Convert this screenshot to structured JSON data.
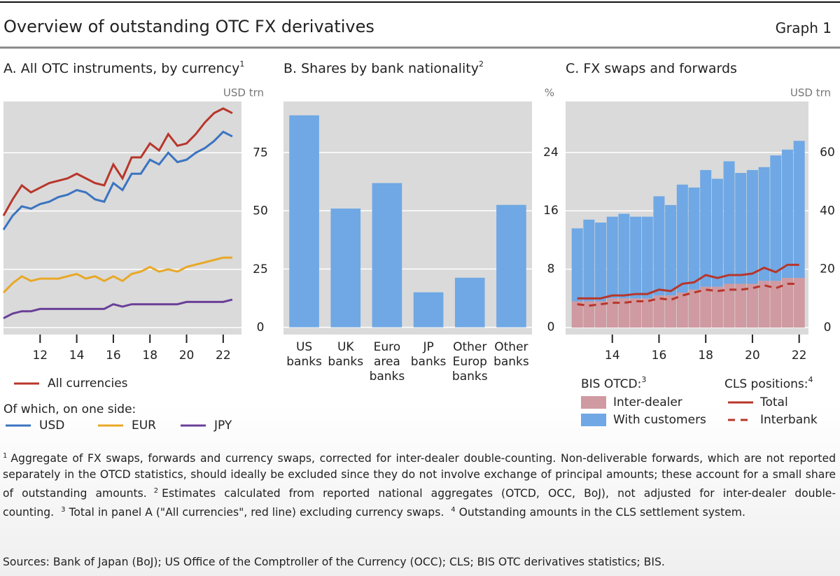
{
  "header": {
    "title": "Overview of outstanding OTC FX derivatives",
    "label": "Graph 1"
  },
  "chart_data": [
    {
      "type": "line",
      "title": "A. All OTC instruments, by currency",
      "title_note": "1",
      "y_unit": "USD trn",
      "x": [
        10,
        10.5,
        11,
        11.5,
        12,
        12.5,
        13,
        13.5,
        14,
        14.5,
        15,
        15.5,
        16,
        16.5,
        17,
        17.5,
        18,
        18.5,
        19,
        19.5,
        20,
        20.5,
        21,
        21.5,
        22,
        22.5
      ],
      "xlim": [
        10,
        23
      ],
      "xticks": [
        12,
        14,
        16,
        18,
        20,
        22
      ],
      "ylim": [
        -3,
        97
      ],
      "yticks": [
        0,
        25,
        50,
        75
      ],
      "grid": true,
      "legend_subtitle": "Of which, on one side:",
      "series": [
        {
          "name": "All currencies",
          "color": "#b8362b",
          "values": [
            48,
            55,
            61,
            58,
            60,
            62,
            63,
            64,
            66,
            64,
            62,
            61,
            70,
            64,
            73,
            73,
            79,
            76,
            83,
            78,
            79,
            83,
            88,
            92,
            94,
            92
          ]
        },
        {
          "name": "USD",
          "color": "#3a74c0",
          "values": [
            42,
            48,
            52,
            51,
            53,
            54,
            56,
            57,
            59,
            58,
            55,
            54,
            62,
            59,
            66,
            66,
            72,
            70,
            75,
            71,
            72,
            75,
            77,
            80,
            84,
            82
          ]
        },
        {
          "name": "EUR",
          "color": "#e8a826",
          "values": [
            15,
            19,
            22,
            20,
            21,
            21,
            21,
            22,
            23,
            21,
            22,
            20,
            22,
            20,
            23,
            24,
            26,
            24,
            25,
            24,
            26,
            27,
            28,
            29,
            30,
            30
          ]
        },
        {
          "name": "JPY",
          "color": "#6a3f98",
          "values": [
            4,
            6,
            7,
            7,
            8,
            8,
            8,
            8,
            8,
            8,
            8,
            8,
            10,
            9,
            10,
            10,
            10,
            10,
            10,
            10,
            11,
            11,
            11,
            11,
            11,
            12
          ]
        }
      ]
    },
    {
      "type": "bar",
      "title": "B. Shares by bank nationality",
      "title_note": "2",
      "y_unit": "%",
      "categories": [
        "US\nbanks",
        "UK\nbanks",
        "Euro\narea\nbanks",
        "JP\nbanks",
        "Other\nEurop\nbanks",
        "Other\nbanks"
      ],
      "values": [
        29.1,
        16.3,
        19.8,
        4.8,
        6.8,
        16.8
      ],
      "color": "#6fa8e4",
      "ylim": [
        -1,
        31
      ],
      "yticks": [
        0,
        8,
        16,
        24
      ],
      "grid": true
    },
    {
      "type": "combo",
      "title": "C. FX swaps and forwards",
      "y_unit": "USD trn",
      "x": [
        12.5,
        13,
        13.5,
        14,
        14.5,
        15,
        15.5,
        16,
        16.5,
        17,
        17.5,
        18,
        18.5,
        19,
        19.5,
        20,
        20.5,
        21,
        21.5,
        22
      ],
      "xlim": [
        12,
        22.4
      ],
      "xticks": [
        14,
        16,
        18,
        20,
        22
      ],
      "ylim": [
        -2.4,
        77.5
      ],
      "yticks": [
        0,
        20,
        40,
        60
      ],
      "grid": true,
      "legend_titles": [
        {
          "text": "BIS OTCD:",
          "note": "3"
        },
        {
          "text": "CLS positions:",
          "note": "4"
        }
      ],
      "series": [
        {
          "name": "Inter-dealer",
          "type": "bar",
          "color": "#cf9aa1",
          "values": [
            9,
            9,
            9,
            10,
            10,
            10,
            10,
            11,
            11,
            12,
            13,
            14,
            14,
            15,
            15,
            15,
            16,
            16,
            17,
            17
          ]
        },
        {
          "name": "With customers",
          "type": "bar",
          "color": "#6fa8e4",
          "values": [
            25,
            28,
            27,
            28,
            29,
            28,
            28,
            34,
            31,
            37,
            35,
            40,
            37,
            42,
            38,
            39,
            39,
            43,
            44,
            47
          ]
        },
        {
          "name": "Total",
          "type": "line",
          "color": "#b8362b",
          "values": [
            10,
            10,
            10,
            11,
            11,
            11.5,
            11.5,
            13,
            12.5,
            15,
            15.5,
            18,
            17,
            18,
            18,
            18.5,
            20.5,
            19,
            21.5,
            21.5
          ]
        },
        {
          "name": "Interbank",
          "type": "line",
          "dashed": true,
          "color": "#b8362b",
          "values": [
            8,
            7.5,
            8,
            8.5,
            8.5,
            9,
            9,
            10,
            9.5,
            11,
            12,
            13,
            12.5,
            13,
            13,
            13.5,
            14.5,
            13.5,
            15,
            15
          ]
        }
      ]
    }
  ],
  "footnotes": [
    {
      "note": "1",
      "text": "Aggregate of FX swaps, forwards and currency swaps, corrected for inter-dealer double-counting. Non-deliverable forwards, which are not reported separately in the OTCD statistics, should ideally be excluded since they do not involve exchange of principal amounts; these account for a small share of outstanding amounts."
    },
    {
      "note": "2",
      "text": "Estimates calculated from reported national aggregates (OTCD, OCC, BoJ), not adjusted for inter-dealer double-counting."
    },
    {
      "note": "3",
      "text": "Total in panel A (\"All currencies\", red line) excluding currency swaps."
    },
    {
      "note": "4",
      "text": "Outstanding amounts in the CLS settlement system."
    }
  ],
  "sources": "Sources: Bank of Japan (BoJ); US Office of the Comptroller of the Currency (OCC); CLS; BIS OTC derivatives statistics; BIS."
}
